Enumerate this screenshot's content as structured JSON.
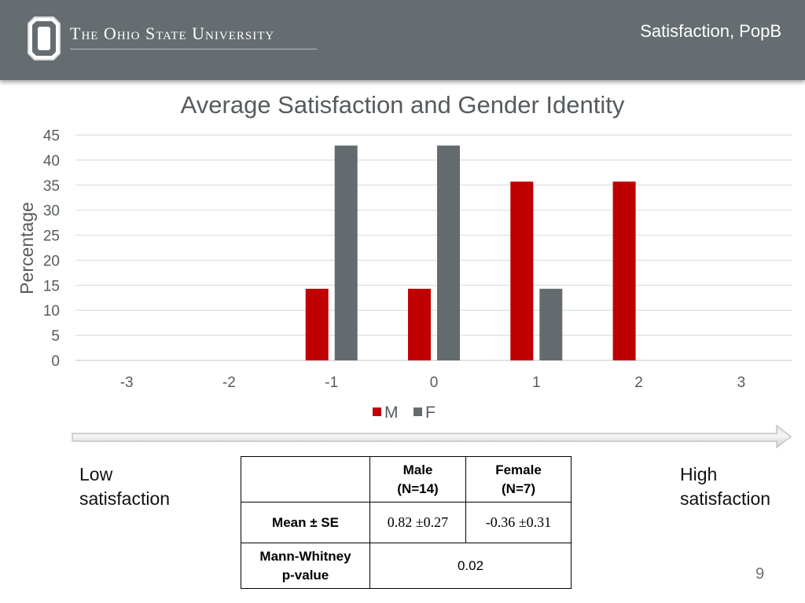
{
  "header": {
    "brand": "The Ohio State University",
    "slide_label": "Satisfaction, PopB"
  },
  "chart_data": {
    "type": "bar",
    "title": "Average Satisfaction and Gender Identity",
    "xlabel": "",
    "ylabel": "Percentage",
    "categories": [
      "-3",
      "-2",
      "-1",
      "0",
      "1",
      "2",
      "3"
    ],
    "series": [
      {
        "name": "M",
        "values": [
          0,
          0,
          14.3,
          14.3,
          35.7,
          35.7,
          0
        ],
        "color": "#c00000"
      },
      {
        "name": "F",
        "values": [
          0,
          0,
          42.9,
          42.9,
          14.3,
          0,
          0
        ],
        "color": "#636b6e"
      }
    ],
    "ylim": [
      0,
      45
    ],
    "yticks": [
      "0",
      "5",
      "10",
      "15",
      "20",
      "25",
      "30",
      "35",
      "40",
      "45"
    ],
    "grid": true,
    "legend": "bottom"
  },
  "scale": {
    "low_line1": "Low",
    "low_line2": "satisfaction",
    "high_line1": "High",
    "high_line2": "satisfaction"
  },
  "stats_table": {
    "male_header_1": "Male",
    "male_header_2": "(N=14)",
    "female_header_1": "Female",
    "female_header_2": "(N=7)",
    "mean_label": "Mean ± SE",
    "male_mean": "0.82 ±0.27",
    "female_mean": "-0.36 ±0.31",
    "mw_label_1": "Mann-Whitney",
    "mw_label_2": "p-value",
    "mw_value": "0.02"
  },
  "page_number": "9",
  "colors": {
    "header_bg": "#666d70",
    "male": "#c00000",
    "female": "#636b6e"
  }
}
